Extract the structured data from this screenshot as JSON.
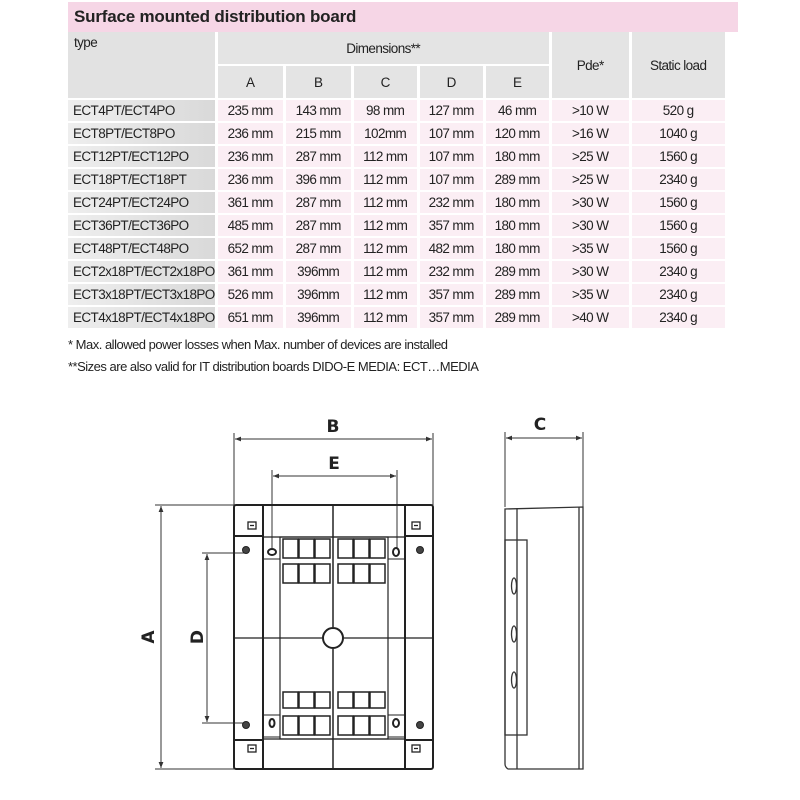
{
  "title": "Surface mounted distribution board",
  "table": {
    "type_header": "type",
    "dimensions_header": "Dimensions**",
    "dimension_columns": [
      "A",
      "B",
      "C",
      "D",
      "E"
    ],
    "pde_header": "Pde*",
    "load_header": "Static load",
    "rows": [
      [
        "ECT4PT/ECT4PO",
        "235 mm",
        "143 mm",
        "98 mm",
        "127 mm",
        "46 mm",
        ">10 W",
        "520 g"
      ],
      [
        "ECT8PT/ECT8PO",
        "236 mm",
        "215 mm",
        "102mm",
        "107 mm",
        "120 mm",
        ">16 W",
        "1040 g"
      ],
      [
        "ECT12PT/ECT12PO",
        "236 mm",
        "287 mm",
        "112 mm",
        "107  mm",
        "180 mm",
        ">25 W",
        "1560 g"
      ],
      [
        "ECT18PT/ECT18PT",
        "236 mm",
        "396 mm",
        "112 mm",
        "107  mm",
        "289 mm",
        ">25 W",
        "2340 g"
      ],
      [
        "ECT24PT/ECT24PO",
        "361 mm",
        "287 mm",
        "112 mm",
        "232 mm",
        "180 mm",
        ">30 W",
        "1560 g"
      ],
      [
        "ECT36PT/ECT36PO",
        "485 mm",
        "287 mm",
        "112 mm",
        "357  mm",
        "180 mm",
        ">30 W",
        "1560 g"
      ],
      [
        "ECT48PT/ECT48PO",
        "652 mm",
        "287 mm",
        "112 mm",
        "482 mm",
        "180 mm",
        ">35 W",
        "1560 g"
      ],
      [
        "ECT2x18PT/ECT2x18PO",
        "361 mm",
        "396mm",
        "112 mm",
        "232 mm",
        "289 mm",
        ">30 W",
        "2340 g"
      ],
      [
        "ECT3x18PT/ECT3x18PO",
        "526 mm",
        "396mm",
        "112 mm",
        "357 mm",
        "289 mm",
        ">35 W",
        "2340 g"
      ],
      [
        "ECT4x18PT/ECT4x18PO",
        "651 mm",
        "396mm",
        "112 mm",
        "357 mm",
        "289 mm",
        ">40 W",
        "2340 g"
      ]
    ]
  },
  "footnotes": [
    "* Max. allowed power losses when Max. number of devices are installed",
    "**Sizes are also valid for IT distribution boards DIDO-E MEDIA: ECT…MEDIA"
  ],
  "drawing": {
    "labels": {
      "A": "A",
      "B": "B",
      "C": "C",
      "D": "D",
      "E": "E"
    }
  }
}
